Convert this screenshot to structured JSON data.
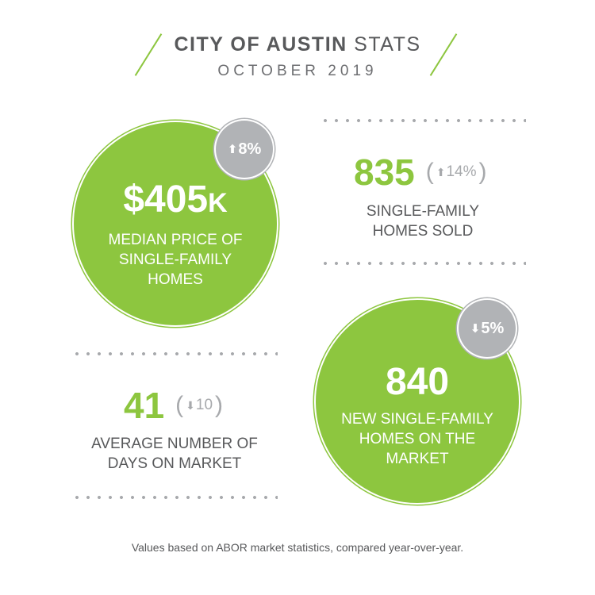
{
  "header": {
    "title_bold": "CITY OF AUSTIN",
    "title_rest": "STATS",
    "subtitle": "OCTOBER 2019"
  },
  "median_price": {
    "value": "$405",
    "suffix": "K",
    "change_arrow": "up-arrow-icon",
    "change": "8%",
    "label_lines": [
      "MEDIAN PRICE OF",
      "SINGLE-FAMILY",
      "HOMES"
    ]
  },
  "homes_sold": {
    "value": "835",
    "change_arrow": "up-arrow-icon",
    "change": "14%",
    "label_lines": [
      "SINGLE-FAMILY",
      "HOMES SOLD"
    ]
  },
  "days_on_market": {
    "value": "41",
    "change_arrow": "down-arrow-icon",
    "change": "10",
    "label_lines": [
      "AVERAGE NUMBER OF",
      "DAYS ON MARKET"
    ]
  },
  "new_listings": {
    "value": "840",
    "change_arrow": "down-arrow-icon",
    "change": "5%",
    "label_lines": [
      "NEW SINGLE-FAMILY",
      "HOMES ON THE",
      "MARKET"
    ]
  },
  "footnote": "Values based on ABOR market statistics, compared year-over-year.",
  "colors": {
    "green": "#8dc63f",
    "gray_badge": "#b1b3b6",
    "text": "#58595b"
  }
}
